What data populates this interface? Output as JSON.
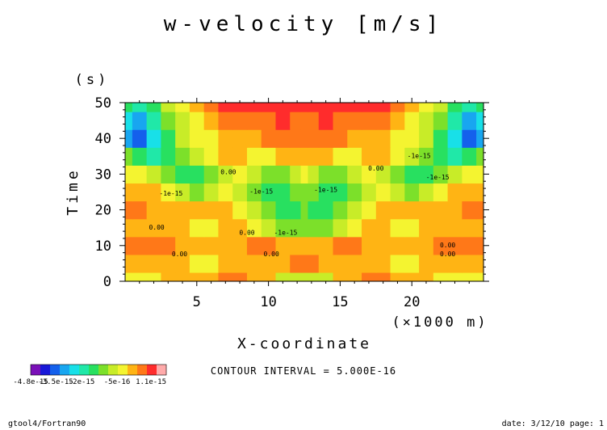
{
  "chart_data": {
    "type": "heatmap",
    "title": "w-velocity [m/s]",
    "xlabel": "X-coordinate",
    "x_unit": "(×1000 m)",
    "ylabel": "Time",
    "y_unit": "(s)",
    "xlim": [
      0,
      25
    ],
    "ylim": [
      0,
      50
    ],
    "x_ticks": [
      5,
      10,
      15,
      20
    ],
    "x_tick_labels": [
      "5",
      "10",
      "15",
      "20"
    ],
    "y_ticks": [
      0,
      10,
      20,
      30,
      40,
      50
    ],
    "y_tick_labels": [
      "0",
      "10",
      "20",
      "30",
      "40",
      "50"
    ],
    "x_samples": [
      0.0,
      1.0,
      2.0,
      3.0,
      4.0,
      5.0,
      6.0,
      7.0,
      8.0,
      9.0,
      10.0,
      11.0,
      12.0,
      12.5,
      13.0,
      14.0,
      15.0,
      16.0,
      17.0,
      18.0,
      19.0,
      20.0,
      21.0,
      22.0,
      23.0,
      24.0,
      25.0
    ],
    "y_samples": [
      0,
      5,
      10,
      15,
      20,
      25,
      30,
      35,
      40,
      45,
      50
    ],
    "z_levels": [
      [
        9,
        9,
        9,
        10,
        10,
        10,
        10,
        11,
        11,
        10,
        10,
        8,
        8,
        8,
        8,
        8,
        10,
        10,
        11,
        11,
        10,
        10,
        10,
        9,
        9,
        9,
        9
      ],
      [
        10,
        10,
        10,
        10,
        10,
        9,
        9,
        10,
        10,
        10,
        10,
        10,
        11,
        11,
        11,
        10,
        10,
        10,
        10,
        10,
        9,
        9,
        10,
        10,
        10,
        10,
        10
      ],
      [
        11,
        11,
        11,
        11,
        10,
        10,
        10,
        10,
        10,
        11,
        11,
        10,
        10,
        10,
        10,
        10,
        11,
        11,
        10,
        10,
        10,
        10,
        10,
        11,
        11,
        11,
        11
      ],
      [
        10,
        10,
        10,
        10,
        10,
        9,
        9,
        10,
        10,
        9,
        8,
        7,
        7,
        7,
        7,
        7,
        8,
        9,
        10,
        10,
        9,
        9,
        10,
        10,
        10,
        10,
        10
      ],
      [
        11,
        11,
        10,
        10,
        10,
        10,
        10,
        10,
        9,
        8,
        7,
        6,
        6,
        7,
        6,
        6,
        7,
        8,
        9,
        10,
        10,
        10,
        10,
        10,
        10,
        11,
        11
      ],
      [
        10,
        10,
        10,
        9,
        8,
        7,
        8,
        9,
        8,
        7,
        6,
        6,
        7,
        7,
        7,
        6,
        6,
        7,
        8,
        9,
        8,
        7,
        8,
        9,
        10,
        10,
        10
      ],
      [
        9,
        9,
        8,
        7,
        6,
        6,
        7,
        8,
        9,
        8,
        7,
        7,
        8,
        9,
        8,
        7,
        7,
        8,
        9,
        8,
        7,
        6,
        6,
        7,
        8,
        9,
        9
      ],
      [
        7,
        6,
        5,
        6,
        7,
        8,
        9,
        10,
        10,
        9,
        9,
        10,
        10,
        10,
        10,
        10,
        9,
        9,
        10,
        10,
        9,
        8,
        7,
        6,
        5,
        6,
        7
      ],
      [
        3,
        2,
        4,
        6,
        8,
        9,
        9,
        10,
        10,
        10,
        11,
        11,
        11,
        11,
        11,
        11,
        11,
        10,
        10,
        10,
        9,
        9,
        8,
        6,
        4,
        2,
        3
      ],
      [
        4,
        3,
        5,
        7,
        8,
        9,
        10,
        11,
        11,
        11,
        11,
        12,
        11,
        11,
        11,
        12,
        11,
        11,
        11,
        11,
        10,
        9,
        8,
        7,
        5,
        3,
        4
      ],
      [
        6,
        5,
        6,
        8,
        9,
        10,
        11,
        12,
        12,
        12,
        12,
        12,
        12,
        12,
        12,
        12,
        12,
        12,
        12,
        12,
        11,
        10,
        9,
        8,
        6,
        5,
        6
      ]
    ],
    "colorbar": {
      "tick_labels": [
        "-4.8e-15",
        "-3.5e-15",
        "-2e-15",
        "-5e-16",
        "1.1e-15"
      ],
      "colors": [
        "#7a10b8",
        "#1818d8",
        "#1460ec",
        "#18a6f0",
        "#18e0e8",
        "#20e8a8",
        "#28e060",
        "#7ce02a",
        "#c8ec28",
        "#f4f430",
        "#ffb414",
        "#ff7818",
        "#ff2c2c",
        "#ffaaaa"
      ]
    },
    "contour_labels": [
      {
        "text": "-1e-15",
        "x": 20.5,
        "y": 34.5
      },
      {
        "text": "-1e-15",
        "x": 21.8,
        "y": 28.5
      },
      {
        "text": "-1e-15",
        "x": 3.2,
        "y": 24
      },
      {
        "text": "-1e-15",
        "x": 9.5,
        "y": 24.5
      },
      {
        "text": "-1e-15",
        "x": 14,
        "y": 25
      },
      {
        "text": "-1e-15",
        "x": 11.2,
        "y": 13
      },
      {
        "text": "0.00",
        "x": 2.2,
        "y": 14.5
      },
      {
        "text": "0.00",
        "x": 3.8,
        "y": 7
      },
      {
        "text": "0.00",
        "x": 8.5,
        "y": 13
      },
      {
        "text": "0.00",
        "x": 17.5,
        "y": 31
      },
      {
        "text": "0.00",
        "x": 7.2,
        "y": 30
      },
      {
        "text": "0.00",
        "x": 22.5,
        "y": 9.5
      },
      {
        "text": "0.00",
        "x": 22.5,
        "y": 7
      },
      {
        "text": "0.00",
        "x": 10.2,
        "y": 7
      }
    ],
    "grid": false,
    "legend": "bottom-left"
  },
  "annotations": {
    "contour_interval": "CONTOUR INTERVAL = 5.000E-16"
  },
  "footer": {
    "left": "gtool4/Fortran90",
    "right": "date: 3/12/10 page: 1"
  }
}
